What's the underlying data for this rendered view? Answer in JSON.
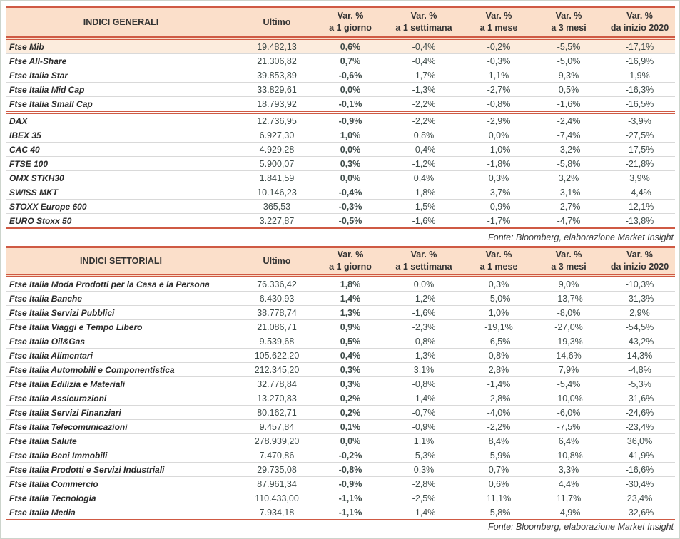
{
  "meta": {
    "fonte": "Fonte: Bloomberg, elaborazione Market Insight"
  },
  "colors": {
    "accent_line": "#cf5a44",
    "header_bg": "#fbdfca",
    "highlight_row_bg": "#fcecdd",
    "number_text": "#3e4b49"
  },
  "header": {
    "ultimo": "Ultimo",
    "var_label": "Var. %",
    "periods": [
      "a 1 giorno",
      "a 1 settimana",
      "a 1 mese",
      "a 3 mesi",
      "da inizio 2020"
    ]
  },
  "tables": [
    {
      "title": "INDICI GENERALI",
      "highlight_first_row": true,
      "groups": [
        [
          [
            "Ftse Mib",
            "19.482,13",
            "0,6%",
            "-0,4%",
            "-0,2%",
            "-5,5%",
            "-17,1%"
          ],
          [
            "Ftse All-Share",
            "21.306,82",
            "0,7%",
            "-0,4%",
            "-0,3%",
            "-5,0%",
            "-16,9%"
          ],
          [
            "Ftse Italia Star",
            "39.853,89",
            "-0,6%",
            "-1,7%",
            "1,1%",
            "9,3%",
            "1,9%"
          ],
          [
            "Ftse Italia Mid Cap",
            "33.829,61",
            "0,0%",
            "-1,3%",
            "-2,7%",
            "0,5%",
            "-16,3%"
          ],
          [
            "Ftse Italia Small Cap",
            "18.793,92",
            "-0,1%",
            "-2,2%",
            "-0,8%",
            "-1,6%",
            "-16,5%"
          ]
        ],
        [
          [
            "DAX",
            "12.736,95",
            "-0,9%",
            "-2,2%",
            "-2,9%",
            "-2,4%",
            "-3,9%"
          ],
          [
            "IBEX 35",
            "6.927,30",
            "1,0%",
            "0,8%",
            "0,0%",
            "-7,4%",
            "-27,5%"
          ],
          [
            "CAC 40",
            "4.929,28",
            "0,0%",
            "-0,4%",
            "-1,0%",
            "-3,2%",
            "-17,5%"
          ],
          [
            "FTSE 100",
            "5.900,07",
            "0,3%",
            "-1,2%",
            "-1,8%",
            "-5,8%",
            "-21,8%"
          ],
          [
            "OMX STKH30",
            "1.841,59",
            "0,0%",
            "0,4%",
            "0,3%",
            "3,2%",
            "3,9%"
          ],
          [
            "SWISS MKT",
            "10.146,23",
            "-0,4%",
            "-1,8%",
            "-3,7%",
            "-3,1%",
            "-4,4%"
          ],
          [
            "STOXX Europe 600",
            "365,53",
            "-0,3%",
            "-1,5%",
            "-0,9%",
            "-2,7%",
            "-12,1%"
          ],
          [
            "EURO Stoxx 50",
            "3.227,87",
            "-0,5%",
            "-1,6%",
            "-1,7%",
            "-4,7%",
            "-13,8%"
          ]
        ]
      ]
    },
    {
      "title": "INDICI SETTORIALI",
      "highlight_first_row": false,
      "groups": [
        [
          [
            "Ftse Italia Moda Prodotti per la Casa e la Persona",
            "76.336,42",
            "1,8%",
            "0,0%",
            "0,3%",
            "9,0%",
            "-10,3%"
          ],
          [
            "Ftse Italia Banche",
            "6.430,93",
            "1,4%",
            "-1,2%",
            "-5,0%",
            "-13,7%",
            "-31,3%"
          ],
          [
            "Ftse Italia Servizi Pubblici",
            "38.778,74",
            "1,3%",
            "-1,6%",
            "1,0%",
            "-8,0%",
            "2,9%"
          ],
          [
            "Ftse Italia Viaggi e Tempo Libero",
            "21.086,71",
            "0,9%",
            "-2,3%",
            "-19,1%",
            "-27,0%",
            "-54,5%"
          ],
          [
            "Ftse Italia Oil&Gas",
            "9.539,68",
            "0,5%",
            "-0,8%",
            "-6,5%",
            "-19,3%",
            "-43,2%"
          ],
          [
            "Ftse Italia Alimentari",
            "105.622,20",
            "0,4%",
            "-1,3%",
            "0,8%",
            "14,6%",
            "14,3%"
          ],
          [
            "Ftse Italia Automobili e Componentistica",
            "212.345,20",
            "0,3%",
            "3,1%",
            "2,8%",
            "7,9%",
            "-4,8%"
          ],
          [
            "Ftse Italia Edilizia e Materiali",
            "32.778,84",
            "0,3%",
            "-0,8%",
            "-1,4%",
            "-5,4%",
            "-5,3%"
          ],
          [
            "Ftse Italia Assicurazioni",
            "13.270,83",
            "0,2%",
            "-1,4%",
            "-2,8%",
            "-10,0%",
            "-31,6%"
          ],
          [
            "Ftse Italia Servizi Finanziari",
            "80.162,71",
            "0,2%",
            "-0,7%",
            "-4,0%",
            "-6,0%",
            "-24,6%"
          ],
          [
            "Ftse Italia Telecomunicazioni",
            "9.457,84",
            "0,1%",
            "-0,9%",
            "-2,2%",
            "-7,5%",
            "-23,4%"
          ],
          [
            "Ftse Italia Salute",
            "278.939,20",
            "0,0%",
            "1,1%",
            "8,4%",
            "6,4%",
            "36,0%"
          ],
          [
            "Ftse Italia Beni Immobili",
            "7.470,86",
            "-0,2%",
            "-5,3%",
            "-5,9%",
            "-10,8%",
            "-41,9%"
          ],
          [
            "Ftse Italia Prodotti e Servizi Industriali",
            "29.735,08",
            "-0,8%",
            "0,3%",
            "0,7%",
            "3,3%",
            "-16,6%"
          ],
          [
            "Ftse Italia Commercio",
            "87.961,34",
            "-0,9%",
            "-2,8%",
            "0,6%",
            "4,4%",
            "-30,4%"
          ],
          [
            "Ftse Italia Tecnologia",
            "110.433,00",
            "-1,1%",
            "-2,5%",
            "11,1%",
            "11,7%",
            "23,4%"
          ],
          [
            "Ftse Italia Media",
            "7.934,18",
            "-1,1%",
            "-1,4%",
            "-5,8%",
            "-4,9%",
            "-32,6%"
          ]
        ]
      ]
    }
  ]
}
